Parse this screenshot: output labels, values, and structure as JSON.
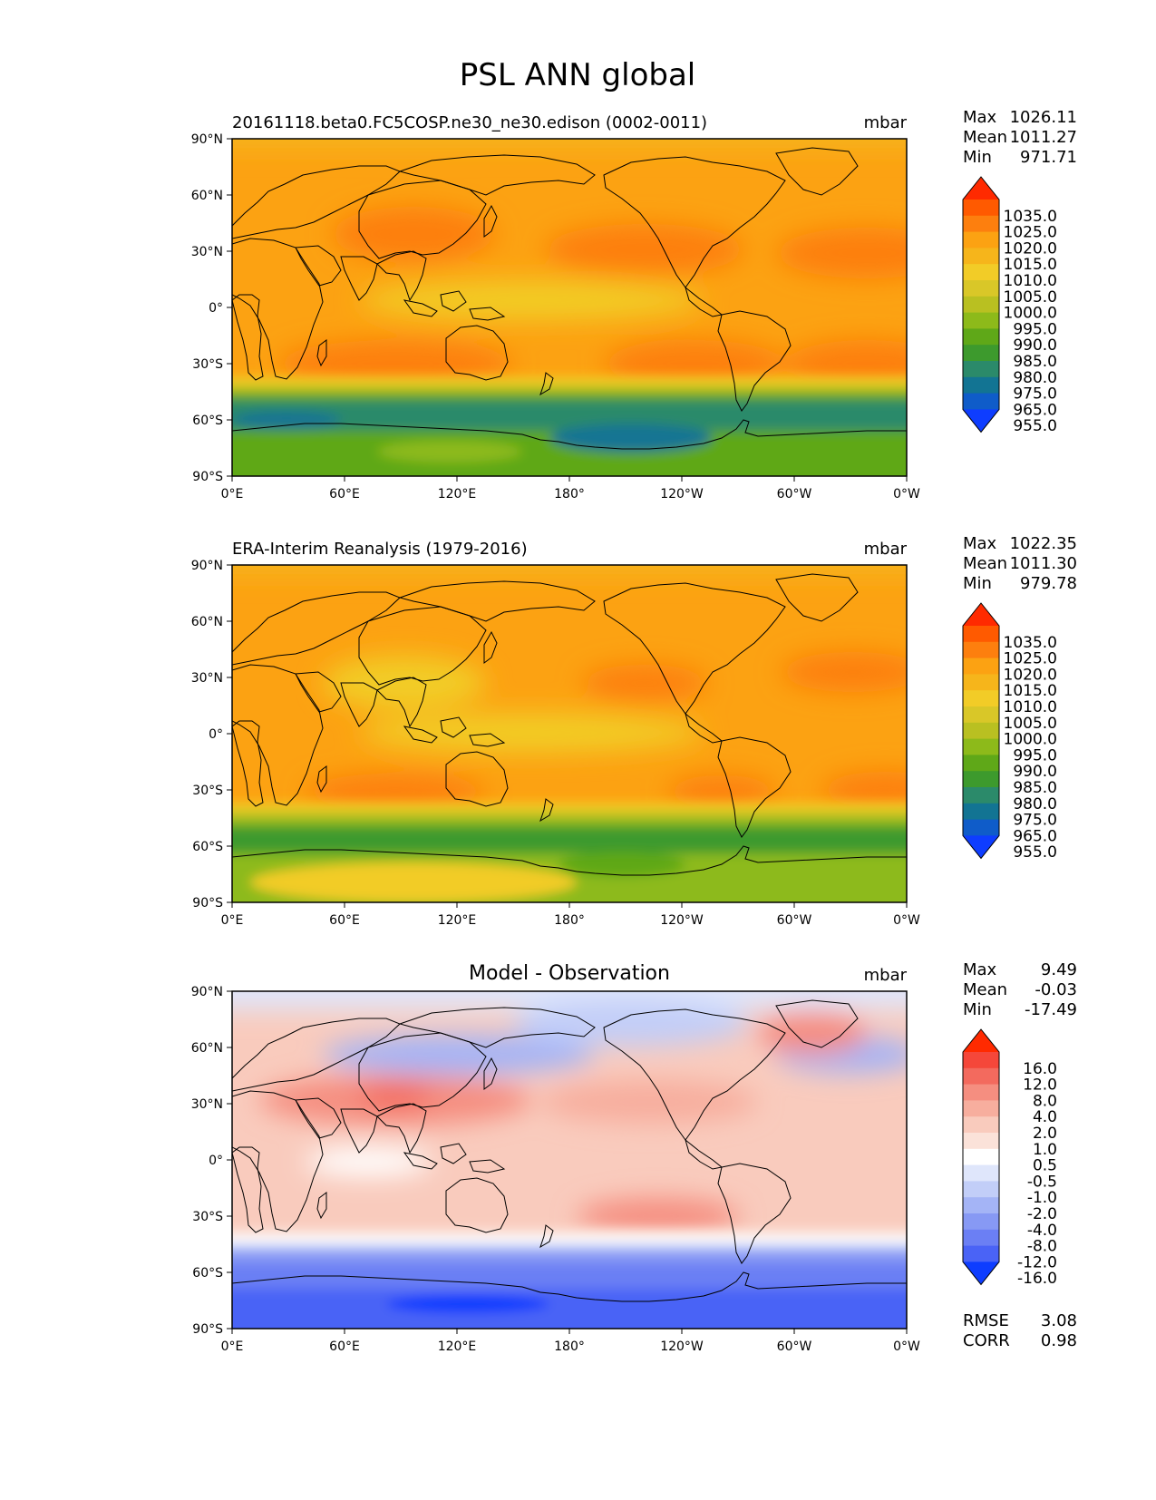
{
  "figure": {
    "title": "PSL ANN global"
  },
  "axes_labels": {
    "lat_ticks": [
      "90°N",
      "60°N",
      "30°N",
      "0°",
      "30°S",
      "60°S",
      "90°S"
    ],
    "lon_ticks": [
      "0°E",
      "60°E",
      "120°E",
      "180°",
      "120°W",
      "60°W",
      "0°W"
    ]
  },
  "panels": [
    {
      "title": "20161118.beta0.FC5COSP.ne30_ne30.edison (0002-0011)",
      "title_align": "left",
      "units": "mbar",
      "stats": [
        {
          "label": "Max",
          "value": "1026.11"
        },
        {
          "label": "Mean",
          "value": "1011.27"
        },
        {
          "label": "Min",
          "value": "971.71"
        }
      ],
      "colorbar": {
        "levels": [
          "1035.0",
          "1025.0",
          "1020.0",
          "1015.0",
          "1010.0",
          "1005.0",
          "1000.0",
          "995.0",
          "990.0",
          "985.0",
          "980.0",
          "975.0",
          "965.0",
          "955.0"
        ],
        "colors": [
          "#ff2a00",
          "#ff5a00",
          "#fd7f0e",
          "#fca212",
          "#f6b51b",
          "#f2cc27",
          "#d9c728",
          "#b9c021",
          "#8dba1a",
          "#5fa818",
          "#3d9a2d",
          "#2b8a6a",
          "#127493",
          "#0f5cc9",
          "#0e3dff"
        ]
      }
    },
    {
      "title": "ERA-Interim Reanalysis (1979-2016)",
      "title_align": "left",
      "units": "mbar",
      "stats": [
        {
          "label": "Max",
          "value": "1022.35"
        },
        {
          "label": "Mean",
          "value": "1011.30"
        },
        {
          "label": "Min",
          "value": "979.78"
        }
      ],
      "colorbar": {
        "levels": [
          "1035.0",
          "1025.0",
          "1020.0",
          "1015.0",
          "1010.0",
          "1005.0",
          "1000.0",
          "995.0",
          "990.0",
          "985.0",
          "980.0",
          "975.0",
          "965.0",
          "955.0"
        ],
        "colors": [
          "#ff2a00",
          "#ff5a00",
          "#fd7f0e",
          "#fca212",
          "#f6b51b",
          "#f2cc27",
          "#d9c728",
          "#b9c021",
          "#8dba1a",
          "#5fa818",
          "#3d9a2d",
          "#2b8a6a",
          "#127493",
          "#0f5cc9",
          "#0e3dff"
        ]
      }
    },
    {
      "title": "Model - Observation",
      "title_align": "center",
      "units": "mbar",
      "stats": [
        {
          "label": "Max",
          "value": "9.49"
        },
        {
          "label": "Mean",
          "value": "-0.03"
        },
        {
          "label": "Min",
          "value": "-17.49"
        }
      ],
      "colorbar": {
        "levels": [
          "16.0",
          "12.0",
          "8.0",
          "4.0",
          "2.0",
          "1.0",
          "0.5",
          "-0.5",
          "-1.0",
          "-2.0",
          "-4.0",
          "-8.0",
          "-12.0",
          "-16.0"
        ],
        "colors": [
          "#ff2a00",
          "#f5473a",
          "#f36a5e",
          "#f58e80",
          "#f7ae9e",
          "#f9cbbd",
          "#fbe2d9",
          "#ffffff",
          "#dfe6fb",
          "#c2cef8",
          "#a4b4f6",
          "#8799f4",
          "#6b7ff4",
          "#4a63f6",
          "#0e3dff"
        ]
      },
      "extra_stats": [
        {
          "label": "RMSE",
          "value": "3.08"
        },
        {
          "label": "CORR",
          "value": "0.98"
        }
      ]
    }
  ]
}
